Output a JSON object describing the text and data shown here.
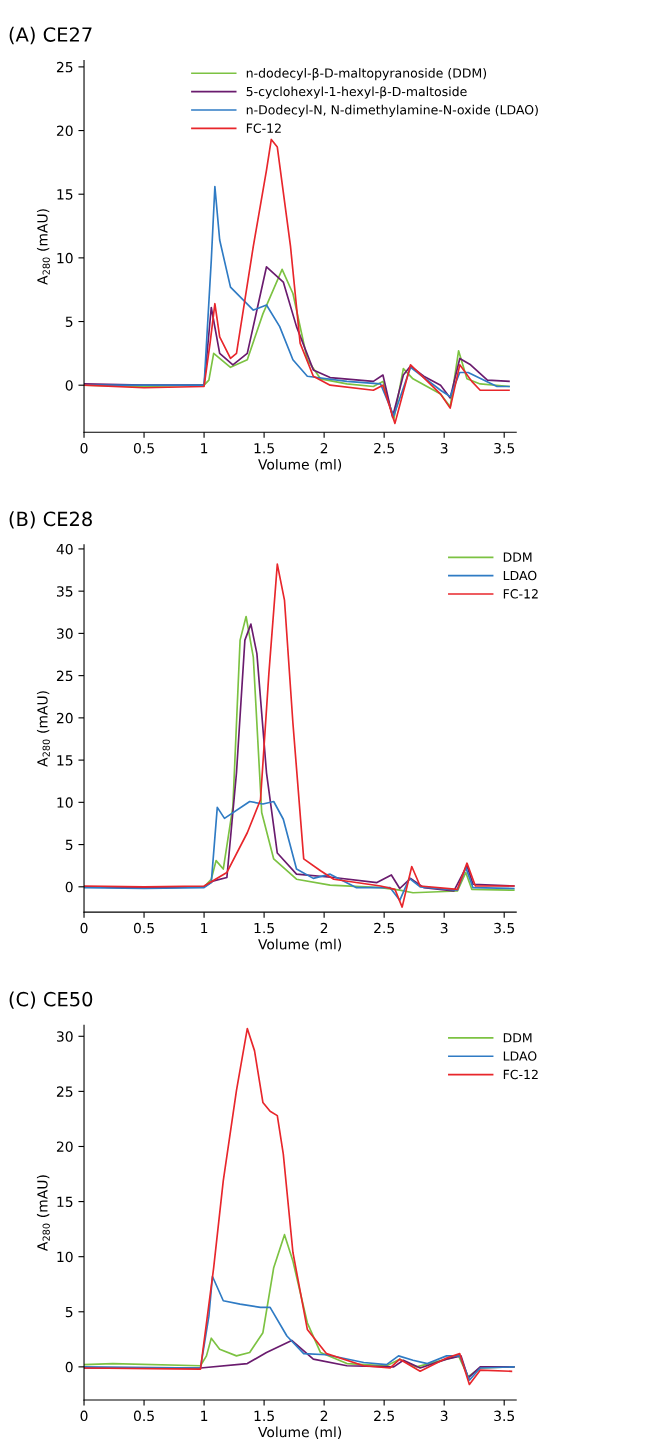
{
  "chart_data": [
    {
      "type": "line",
      "title": "(A) CE27",
      "xlabel": "Volume (ml)",
      "ylabel": "A$_{280}$ (mAU)",
      "xlim": [
        0,
        3.6
      ],
      "ylim": [
        -3.7,
        25.5
      ],
      "xticks": [
        0,
        0.5,
        1,
        1.5,
        2,
        2.5,
        3,
        3.5
      ],
      "yticks": [
        0,
        5,
        10,
        15,
        20,
        25
      ],
      "grid": false,
      "legend": "top right",
      "series": [
        {
          "name": "n-dodecyl-β-D-maltopyranoside (DDM)",
          "color": "#7cc242",
          "x": [
            0,
            0.5,
            1.0,
            1.04,
            1.08,
            1.22,
            1.36,
            1.49,
            1.65,
            1.74,
            1.86,
            1.97,
            2.19,
            2.41,
            2.49,
            2.58,
            2.66,
            2.74,
            2.97,
            3.05,
            3.12,
            3.19,
            3.3,
            3.54
          ],
          "values": [
            0,
            -0.1,
            0,
            0.4,
            2.5,
            1.4,
            2.0,
            5.6,
            9.1,
            7.2,
            2.0,
            0.5,
            0.1,
            -0.1,
            0.3,
            -2.7,
            1.3,
            0.5,
            -0.7,
            -1.7,
            2.7,
            0.5,
            0.1,
            -0.1
          ]
        },
        {
          "name": "5-cyclohexyl-1-hexyl-β-D-maltoside",
          "color": "#6a1b6e",
          "x": [
            0,
            0.5,
            1.0,
            1.02,
            1.06,
            1.13,
            1.24,
            1.36,
            1.52,
            1.66,
            1.77,
            1.91,
            2.05,
            2.41,
            2.49,
            2.57,
            2.66,
            2.72,
            2.83,
            2.97,
            3.05,
            3.13,
            3.22,
            3.36,
            3.54
          ],
          "values": [
            0.1,
            0,
            0,
            2.0,
            6.1,
            2.5,
            1.6,
            2.5,
            9.3,
            8.1,
            4.6,
            1.2,
            0.6,
            0.3,
            0.8,
            -2.5,
            0.8,
            1.5,
            0.7,
            0,
            -1.0,
            2.1,
            1.6,
            0.4,
            0.3
          ]
        },
        {
          "name": "n-Dodecyl-N, N-dimethylamine-N-oxide (LDAO)",
          "color": "#2f7bc4",
          "x": [
            0,
            0.5,
            1.0,
            1.06,
            1.09,
            1.13,
            1.22,
            1.41,
            1.52,
            1.63,
            1.74,
            1.86,
            2.19,
            2.47,
            2.58,
            2.72,
            2.97,
            3.05,
            3.13,
            3.2,
            3.44,
            3.54
          ],
          "values": [
            0,
            0,
            0,
            9.8,
            15.6,
            11.4,
            7.7,
            5.9,
            6.3,
            4.6,
            2.0,
            0.7,
            0.3,
            0.1,
            -2.4,
            1.4,
            -0.4,
            -0.9,
            1.0,
            1.0,
            -0.1,
            -0.1
          ]
        },
        {
          "name": "FC-12",
          "color": "#e8262b",
          "x": [
            0,
            0.5,
            1.0,
            1.05,
            1.09,
            1.13,
            1.22,
            1.27,
            1.41,
            1.52,
            1.56,
            1.61,
            1.72,
            1.8,
            1.91,
            2.05,
            2.41,
            2.49,
            2.59,
            2.72,
            2.97,
            3.05,
            3.13,
            3.23,
            3.3,
            3.54
          ],
          "values": [
            0,
            -0.2,
            -0.1,
            3.3,
            6.4,
            3.8,
            2.1,
            2.5,
            10.9,
            16.9,
            19.3,
            18.7,
            10.9,
            3.3,
            0.7,
            0,
            -0.4,
            0,
            -3.0,
            1.6,
            -0.7,
            -1.8,
            1.6,
            0.3,
            -0.4,
            -0.4
          ]
        }
      ]
    },
    {
      "type": "line",
      "title": "(B) CE28",
      "xlabel": "Volume (ml)",
      "ylabel": "A$_{280}$ (mAU)",
      "xlim": [
        0,
        3.6
      ],
      "ylim": [
        -3,
        40.5
      ],
      "xticks": [
        0,
        0.5,
        1,
        1.5,
        2,
        2.5,
        3,
        3.5
      ],
      "yticks": [
        0,
        5,
        10,
        15,
        20,
        25,
        30,
        35,
        40
      ],
      "grid": false,
      "legend": "top right",
      "series": [
        {
          "name": "DDM",
          "color": "#7cc242",
          "x": [
            0,
            0.5,
            1.0,
            1.06,
            1.1,
            1.16,
            1.24,
            1.3,
            1.35,
            1.41,
            1.48,
            1.58,
            1.77,
            2.05,
            2.47,
            2.63,
            2.74,
            3.11,
            3.18,
            3.23,
            3.58
          ],
          "values": [
            0,
            -0.1,
            0,
            0.9,
            3.1,
            2.1,
            9.5,
            29.2,
            32.0,
            27.2,
            8.8,
            3.3,
            0.9,
            0.2,
            -0.1,
            -0.4,
            -0.7,
            -0.5,
            1.7,
            -0.3,
            -0.4
          ]
        },
        {
          "color": "#6a1b6e",
          "x": [
            0,
            0.5,
            1.0,
            1.08,
            1.19,
            1.27,
            1.34,
            1.39,
            1.44,
            1.52,
            1.61,
            1.77,
            2.08,
            2.44,
            2.56,
            2.63,
            2.72,
            2.83,
            3.08,
            3.19,
            3.24,
            3.58
          ],
          "values": [
            0,
            -0.1,
            0,
            0.7,
            1.1,
            13.5,
            29.2,
            31.1,
            27.6,
            13.5,
            4.0,
            1.5,
            1.1,
            0.5,
            1.4,
            -0.2,
            1.0,
            -0.1,
            -0.5,
            2.5,
            0.3,
            0.1
          ]
        },
        {
          "name": "LDAO",
          "color": "#2f7bc4",
          "x": [
            0,
            0.5,
            1.0,
            1.06,
            1.11,
            1.17,
            1.38,
            1.49,
            1.58,
            1.66,
            1.77,
            1.91,
            2.05,
            2.27,
            2.55,
            2.63,
            2.71,
            2.8,
            3.11,
            3.18,
            3.24,
            3.58
          ],
          "values": [
            -0.1,
            -0.2,
            -0.1,
            0.5,
            9.4,
            8.1,
            10.1,
            9.8,
            10.1,
            8.0,
            2.1,
            1.0,
            1.5,
            -0.1,
            -0.1,
            -1.6,
            1.0,
            0,
            -0.4,
            2.3,
            -0.1,
            -0.2
          ]
        },
        {
          "name": "FC-12",
          "color": "#e8262b",
          "x": [
            0,
            0.5,
            1.0,
            1.19,
            1.36,
            1.47,
            1.54,
            1.61,
            1.67,
            1.74,
            1.83,
            1.97,
            2.08,
            2.47,
            2.59,
            2.65,
            2.73,
            2.8,
            3.11,
            3.19,
            3.26,
            3.58
          ],
          "values": [
            0.1,
            0,
            0.1,
            1.7,
            6.4,
            10.3,
            25.3,
            38.2,
            33.9,
            19.4,
            3.3,
            1.9,
            0.9,
            0.1,
            -0.3,
            -2.4,
            2.4,
            0.1,
            -0.3,
            2.8,
            0.1,
            0.1
          ]
        }
      ]
    },
    {
      "type": "line",
      "title": "(C) CE50",
      "xlabel": "Volume (ml)",
      "ylabel": "A$_{280}$ (mAU)",
      "xlim": [
        0,
        3.6
      ],
      "ylim": [
        -3,
        31
      ],
      "xticks": [
        0,
        0.5,
        1,
        1.5,
        2,
        2.5,
        3,
        3.5
      ],
      "yticks": [
        0,
        5,
        10,
        15,
        20,
        25,
        30
      ],
      "grid": false,
      "legend": "top right",
      "series": [
        {
          "name": "DDM",
          "color": "#7cc242",
          "x": [
            0,
            0.24,
            0.97,
            1.02,
            1.06,
            1.13,
            1.27,
            1.38,
            1.49,
            1.58,
            1.67,
            1.74,
            1.86,
            1.97,
            2.19,
            2.52,
            2.63,
            2.77,
            3.02,
            3.12,
            3.2,
            3.3,
            3.58
          ],
          "values": [
            0.2,
            0.3,
            0.1,
            1.0,
            2.6,
            1.6,
            1.0,
            1.3,
            3.1,
            9.0,
            12.0,
            9.6,
            4.0,
            1.3,
            0.3,
            0.1,
            0.7,
            0,
            0.7,
            1.0,
            -0.9,
            -0.1,
            0
          ]
        },
        {
          "color": "#6a1b6e",
          "x": [
            0,
            0.97,
            1.36,
            1.52,
            1.73,
            1.91,
            2.19,
            2.58,
            2.66,
            2.8,
            3.02,
            3.14,
            3.2,
            3.3,
            3.58
          ],
          "values": [
            -0.1,
            -0.1,
            0.3,
            1.3,
            2.4,
            0.7,
            0.1,
            0,
            0.6,
            -0.1,
            0.7,
            1.0,
            -1.0,
            0,
            0
          ]
        },
        {
          "name": "LDAO",
          "color": "#2f7bc4",
          "x": [
            0,
            0.97,
            1.04,
            1.07,
            1.16,
            1.3,
            1.47,
            1.55,
            1.69,
            1.83,
            2.02,
            2.33,
            2.52,
            2.62,
            2.74,
            2.86,
            3.02,
            3.13,
            3.21,
            3.3,
            3.58
          ],
          "values": [
            0,
            -0.1,
            4.6,
            8.2,
            6.0,
            5.7,
            5.4,
            5.4,
            2.8,
            1.2,
            1.1,
            0.4,
            0.2,
            1.0,
            0.6,
            0.3,
            1.0,
            1.0,
            -1.2,
            -0.1,
            0
          ]
        },
        {
          "name": "FC-12",
          "color": "#e8262b",
          "x": [
            0,
            0.97,
            1.08,
            1.16,
            1.27,
            1.36,
            1.42,
            1.49,
            1.55,
            1.61,
            1.66,
            1.74,
            1.86,
            2.02,
            2.33,
            2.55,
            2.63,
            2.8,
            3.02,
            3.13,
            3.21,
            3.3,
            3.56
          ],
          "values": [
            -0.1,
            -0.2,
            9.0,
            16.9,
            25.1,
            30.7,
            28.7,
            24.0,
            23.2,
            22.8,
            19.3,
            10.4,
            3.4,
            1.2,
            0.1,
            -0.1,
            0.7,
            -0.4,
            0.8,
            1.2,
            -1.6,
            -0.3,
            -0.4
          ]
        }
      ]
    }
  ]
}
